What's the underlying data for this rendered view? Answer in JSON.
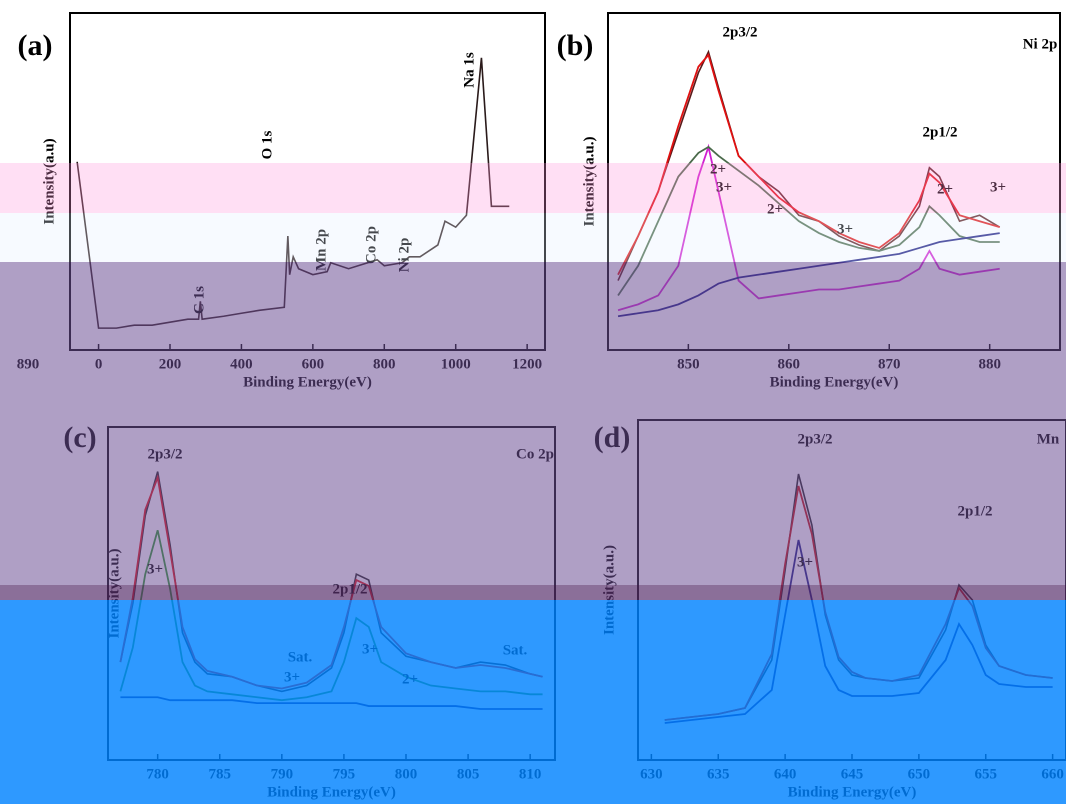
{
  "chart_data": [
    {
      "type": "line",
      "label": "(a)",
      "x_label": "Binding Energy(eV)",
      "y_label": "Intensity(a.u)",
      "xlim": [
        -80,
        1250
      ],
      "ylim": [
        0,
        100
      ],
      "xticks": [
        0,
        200,
        400,
        600,
        800,
        1000,
        1200
      ],
      "annotations": [
        "Na 1s",
        "O 1s",
        "C 1s",
        "Mn 2p",
        "Co 2p",
        "Ni 2p",
        "890"
      ],
      "x": [
        -60,
        0,
        50,
        100,
        150,
        200,
        250,
        280,
        285,
        290,
        350,
        400,
        450,
        520,
        530,
        535,
        545,
        560,
        600,
        640,
        650,
        700,
        780,
        800,
        850,
        870,
        900,
        950,
        970,
        1000,
        1030,
        1072,
        1100,
        1150
      ],
      "series": [
        {
          "color": "#2a1a1a",
          "values": [
            60,
            4,
            4,
            5,
            5,
            6,
            7,
            7,
            13,
            7,
            8,
            9,
            10,
            11,
            35,
            22,
            28,
            24,
            22,
            23,
            26,
            24,
            27,
            25,
            26,
            28,
            28,
            32,
            40,
            38,
            42,
            95,
            45,
            45
          ]
        }
      ]
    },
    {
      "type": "line",
      "label": "(b)",
      "title": "Ni 2p",
      "x_label": "Binding Energy(eV)",
      "y_label": "Intensity(a.u.)",
      "xlim": [
        842,
        887
      ],
      "ylim": [
        0,
        100
      ],
      "xticks": [
        850,
        860,
        870,
        880
      ],
      "annotations": [
        "2p3/2",
        "2p1/2",
        "2+",
        "3+",
        "2+",
        "2+",
        "3+",
        "3+"
      ],
      "x": [
        843,
        845,
        847,
        849,
        851,
        852,
        853,
        855,
        857,
        859,
        861,
        863,
        865,
        867,
        869,
        871,
        873,
        874,
        875,
        877,
        879,
        881
      ],
      "series": [
        {
          "color": "#5a1a1a",
          "values": [
            20,
            35,
            50,
            70,
            90,
            97,
            85,
            62,
            55,
            50,
            42,
            40,
            35,
            32,
            30,
            35,
            45,
            58,
            55,
            40,
            42,
            38
          ]
        },
        {
          "color": "#e01010",
          "values": [
            22,
            35,
            50,
            72,
            92,
            96,
            84,
            62,
            55,
            48,
            43,
            40,
            36,
            33,
            31,
            36,
            47,
            56,
            53,
            42,
            40,
            38
          ]
        },
        {
          "color": "#d020d0",
          "values": [
            10,
            12,
            15,
            25,
            55,
            65,
            50,
            20,
            14,
            15,
            16,
            17,
            17,
            18,
            19,
            20,
            24,
            30,
            24,
            22,
            23,
            24
          ]
        },
        {
          "color": "#4a6a4a",
          "values": [
            15,
            25,
            40,
            55,
            63,
            65,
            62,
            57,
            52,
            46,
            40,
            36,
            33,
            31,
            30,
            32,
            38,
            45,
            42,
            35,
            33,
            33
          ]
        },
        {
          "color": "#1a1a80",
          "values": [
            8,
            9,
            10,
            12,
            15,
            17,
            19,
            21,
            22,
            23,
            24,
            25,
            26,
            27,
            28,
            29,
            31,
            32,
            33,
            34,
            35,
            36
          ]
        }
      ]
    },
    {
      "type": "line",
      "label": "(c)",
      "title": "Co 2p",
      "x_label": "Binding Energy(eV)",
      "y_label": "Intensity(a.u.)",
      "xlim": [
        776,
        812
      ],
      "ylim": [
        0,
        100
      ],
      "xticks": [
        780,
        785,
        790,
        795,
        800,
        805,
        810
      ],
      "annotations": [
        "2p3/2",
        "3+",
        "2p1/2",
        "Sat.",
        "Sat.",
        "3+",
        "3+",
        "2+"
      ],
      "x": [
        777,
        778,
        779,
        780,
        781,
        782,
        783,
        784,
        786,
        788,
        790,
        792,
        794,
        795,
        796,
        797,
        798,
        800,
        802,
        804,
        806,
        808,
        810,
        811
      ],
      "series": [
        {
          "color": "#202020",
          "values": [
            30,
            50,
            80,
            95,
            70,
            40,
            30,
            26,
            25,
            22,
            20,
            22,
            28,
            40,
            60,
            58,
            40,
            32,
            30,
            28,
            30,
            29,
            26,
            25
          ]
        },
        {
          "color": "#e01010",
          "values": [
            30,
            52,
            82,
            93,
            68,
            42,
            31,
            27,
            25,
            22,
            21,
            23,
            29,
            42,
            58,
            56,
            42,
            33,
            30,
            28,
            29,
            28,
            26,
            25
          ]
        },
        {
          "color": "#2a9a2a",
          "values": [
            20,
            35,
            60,
            75,
            55,
            30,
            22,
            20,
            19,
            18,
            17,
            18,
            20,
            30,
            45,
            42,
            30,
            25,
            22,
            21,
            20,
            20,
            19,
            19
          ]
        },
        {
          "color": "#1a1a80",
          "values": [
            18,
            18,
            18,
            18,
            17,
            17,
            17,
            17,
            17,
            16,
            16,
            16,
            16,
            16,
            16,
            15,
            15,
            15,
            15,
            15,
            14,
            14,
            14,
            14
          ]
        }
      ]
    },
    {
      "type": "line",
      "label": "(d)",
      "title": "Mn",
      "x_label": "Binding Energy(eV)",
      "y_label": "Intensity(a.u.)",
      "xlim": [
        629,
        661
      ],
      "ylim": [
        0,
        100
      ],
      "xticks": [
        630,
        635,
        640,
        645,
        650,
        655,
        660
      ],
      "annotations": [
        "2p3/2",
        "2p1/2",
        "3+"
      ],
      "x": [
        631,
        633,
        635,
        637,
        639,
        640,
        641,
        642,
        643,
        644,
        645,
        646,
        648,
        650,
        652,
        653,
        654,
        655,
        656,
        658,
        660
      ],
      "series": [
        {
          "color": "#202020",
          "values": [
            10,
            11,
            12,
            14,
            30,
            60,
            92,
            75,
            45,
            30,
            25,
            24,
            23,
            24,
            40,
            55,
            50,
            35,
            28,
            25,
            24
          ]
        },
        {
          "color": "#c01010",
          "values": [
            10,
            11,
            12,
            14,
            32,
            62,
            88,
            72,
            46,
            31,
            26,
            24,
            23,
            25,
            42,
            54,
            48,
            34,
            28,
            25,
            24
          ]
        },
        {
          "color": "#1a1a80",
          "values": [
            9,
            10,
            11,
            12,
            20,
            45,
            70,
            50,
            28,
            20,
            18,
            18,
            18,
            19,
            30,
            42,
            35,
            25,
            22,
            21,
            21
          ]
        }
      ]
    }
  ]
}
